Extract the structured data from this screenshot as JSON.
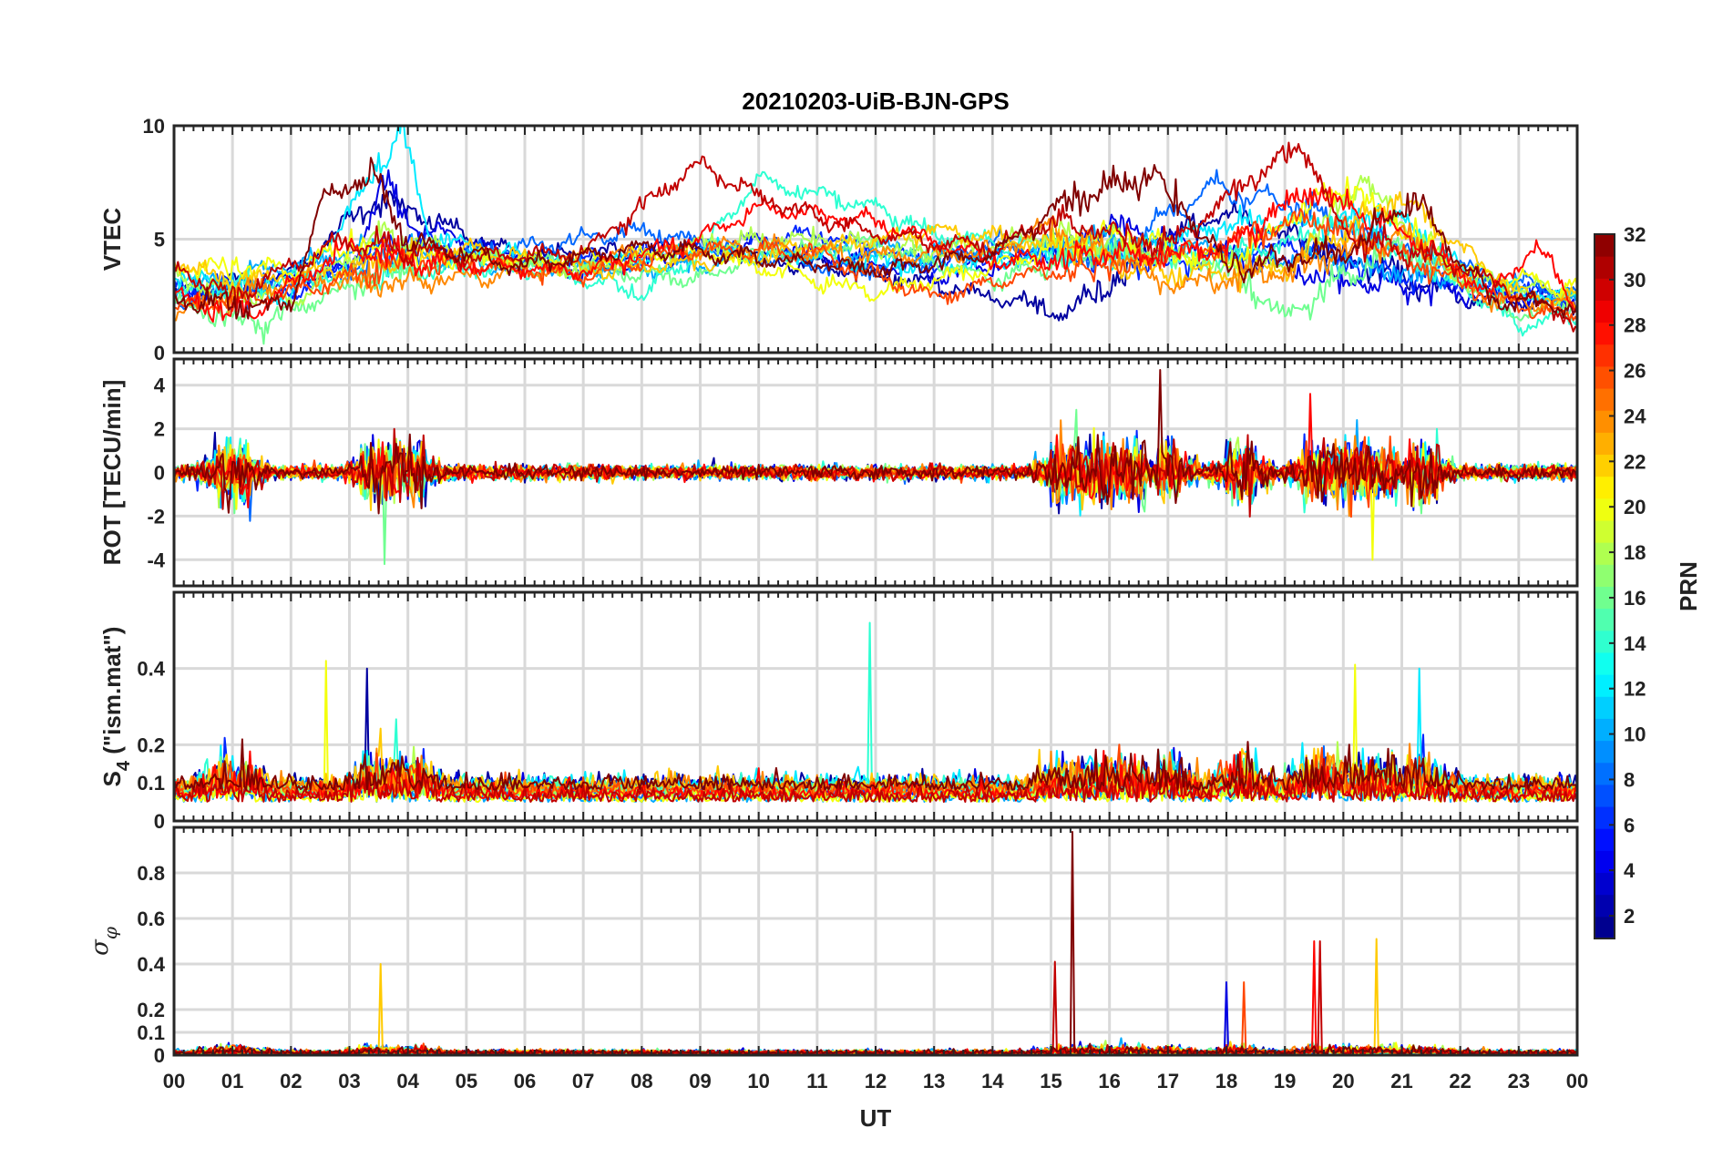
{
  "chart_data": {
    "type": "line",
    "title": "20210203-UiB-BJN-GPS",
    "xlabel": "UT",
    "x_tick_labels": [
      "00",
      "01",
      "02",
      "03",
      "04",
      "05",
      "06",
      "07",
      "08",
      "09",
      "10",
      "11",
      "12",
      "13",
      "14",
      "15",
      "16",
      "17",
      "18",
      "19",
      "20",
      "21",
      "22",
      "23",
      "00"
    ],
    "x_range_hours": [
      0,
      24
    ],
    "colorbar": {
      "label": "PRN",
      "range": [
        1,
        32
      ],
      "tick_labels": [
        "2",
        "4",
        "6",
        "8",
        "10",
        "12",
        "14",
        "16",
        "18",
        "20",
        "22",
        "24",
        "26",
        "28",
        "30",
        "32"
      ],
      "colormap": "jet"
    },
    "panels": [
      {
        "id": "vtec",
        "ylabel": "VTEC",
        "ylim": [
          0,
          10
        ],
        "yticks": [
          0,
          5,
          10
        ],
        "ytick_labels": [
          "0",
          "5",
          "10"
        ]
      },
      {
        "id": "rot",
        "ylabel": "ROT [TECU/min]",
        "ylim": [
          -5.2,
          5.2
        ],
        "yticks": [
          -4,
          -2,
          0,
          2,
          4
        ],
        "ytick_labels": [
          "-4",
          "-2",
          "0",
          "2",
          "4"
        ]
      },
      {
        "id": "s4",
        "ylabel_main": "S",
        "ylabel_sub": "4",
        "ylabel_rest": " (\"ism.mat\")",
        "ylim": [
          0,
          0.6
        ],
        "yticks": [
          0,
          0.1,
          0.2,
          0.4
        ],
        "ytick_labels": [
          "0",
          "0.1",
          "0.2",
          "0.4"
        ]
      },
      {
        "id": "sigma_phi",
        "ylabel_main": "σ",
        "ylabel_sub": "φ",
        "ylim": [
          0,
          1
        ],
        "yticks": [
          0,
          0.1,
          0.2,
          0.4,
          0.6,
          0.8
        ],
        "ytick_labels": [
          "0",
          "0.1",
          "0.2",
          "0.4",
          "0.6",
          "0.8"
        ]
      }
    ],
    "series": [
      {
        "prn": 2,
        "vtec_profile": [
          [
            0,
            2.6
          ],
          [
            2,
            3.4
          ],
          [
            3.4,
            6.8
          ],
          [
            4,
            6.2
          ],
          [
            6,
            4.2
          ],
          [
            9,
            4.6
          ],
          [
            12,
            3.5
          ],
          [
            14.5,
            2.2
          ],
          [
            15.2,
            1.6
          ],
          [
            17,
            5
          ],
          [
            18,
            6.2
          ],
          [
            20,
            4.2
          ],
          [
            22,
            2.4
          ],
          [
            24,
            2.2
          ]
        ]
      },
      {
        "prn": 4,
        "vtec_profile": [
          [
            0,
            2.4
          ],
          [
            3,
            3.6
          ],
          [
            3.6,
            7.4
          ],
          [
            4.2,
            5.4
          ],
          [
            7,
            3.6
          ],
          [
            10,
            4.8
          ],
          [
            13,
            3.4
          ],
          [
            15,
            4.2
          ],
          [
            16,
            5.6
          ],
          [
            18,
            4.4
          ],
          [
            20,
            3.2
          ],
          [
            22,
            2.6
          ],
          [
            24,
            2.4
          ]
        ]
      },
      {
        "prn": 6,
        "vtec_profile": [
          [
            0,
            3.0
          ],
          [
            2,
            2.6
          ],
          [
            4,
            5.0
          ],
          [
            6,
            3.8
          ],
          [
            8,
            4.4
          ],
          [
            11,
            5.2
          ],
          [
            13,
            4.0
          ],
          [
            15,
            4.6
          ],
          [
            17,
            3.8
          ],
          [
            19,
            4.8
          ],
          [
            21,
            3.4
          ],
          [
            24,
            2.6
          ]
        ]
      },
      {
        "prn": 8,
        "vtec_profile": [
          [
            0,
            2.2
          ],
          [
            2,
            3.0
          ],
          [
            3.8,
            4.2
          ],
          [
            6,
            4.6
          ],
          [
            8,
            5.4
          ],
          [
            10,
            4.2
          ],
          [
            12,
            3.6
          ],
          [
            14,
            4.8
          ],
          [
            16,
            4.2
          ],
          [
            17.8,
            7.4
          ],
          [
            19.2,
            6.4
          ],
          [
            21,
            4.6
          ],
          [
            24,
            2.4
          ]
        ]
      },
      {
        "prn": 10,
        "vtec_profile": [
          [
            0,
            2.8
          ],
          [
            3,
            4.4
          ],
          [
            5,
            4.0
          ],
          [
            8,
            3.6
          ],
          [
            10,
            4.2
          ],
          [
            12,
            4.6
          ],
          [
            14,
            4.2
          ],
          [
            16,
            5.0
          ],
          [
            18,
            4.4
          ],
          [
            20,
            4.0
          ],
          [
            22,
            3.2
          ],
          [
            24,
            2.2
          ]
        ]
      },
      {
        "prn": 12,
        "vtec_profile": [
          [
            0,
            3.4
          ],
          [
            2,
            2.4
          ],
          [
            3.9,
            9.8
          ],
          [
            4.4,
            5.0
          ],
          [
            7,
            3.8
          ],
          [
            9,
            4.6
          ],
          [
            11,
            4.2
          ],
          [
            13,
            3.8
          ],
          [
            16,
            4.4
          ],
          [
            18,
            5.6
          ],
          [
            21,
            5.8
          ],
          [
            22.5,
            2.8
          ],
          [
            24,
            2.4
          ]
        ]
      },
      {
        "prn": 14,
        "vtec_profile": [
          [
            0,
            2.6
          ],
          [
            2,
            3.2
          ],
          [
            4,
            3.6
          ],
          [
            6,
            3.8
          ],
          [
            8,
            2.6
          ],
          [
            9,
            4.4
          ],
          [
            10,
            7.6
          ],
          [
            12,
            6.4
          ],
          [
            13,
            5.2
          ],
          [
            15,
            4.6
          ],
          [
            18,
            4.2
          ],
          [
            20,
            5.6
          ],
          [
            22,
            3.0
          ],
          [
            23,
            1.2
          ],
          [
            24,
            1.6
          ]
        ]
      },
      {
        "prn": 16,
        "vtec_profile": [
          [
            0,
            2.2
          ],
          [
            1.5,
            1.2
          ],
          [
            3,
            3.0
          ],
          [
            5,
            4.2
          ],
          [
            7,
            3.8
          ],
          [
            9,
            3.2
          ],
          [
            10,
            4.4
          ],
          [
            12,
            4.8
          ],
          [
            14,
            3.2
          ],
          [
            16,
            4.6
          ],
          [
            18,
            3.8
          ],
          [
            19,
            1.6
          ],
          [
            21,
            4.8
          ],
          [
            23,
            1.6
          ],
          [
            24,
            2.2
          ]
        ]
      },
      {
        "prn": 18,
        "vtec_profile": [
          [
            0,
            3.2
          ],
          [
            2,
            2.2
          ],
          [
            3.5,
            5.2
          ],
          [
            5,
            4.4
          ],
          [
            7,
            3.6
          ],
          [
            9,
            4.8
          ],
          [
            11,
            5.0
          ],
          [
            13,
            4.4
          ],
          [
            15,
            5.2
          ],
          [
            17,
            4.4
          ],
          [
            19,
            3.6
          ],
          [
            20.3,
            7.6
          ],
          [
            22,
            3.2
          ],
          [
            24,
            2.6
          ]
        ]
      },
      {
        "prn": 20,
        "vtec_profile": [
          [
            0,
            3.8
          ],
          [
            2,
            3.6
          ],
          [
            3,
            4.8
          ],
          [
            5,
            4.0
          ],
          [
            7,
            4.2
          ],
          [
            9,
            4.4
          ],
          [
            11,
            3.2
          ],
          [
            12,
            2.6
          ],
          [
            14,
            3.8
          ],
          [
            16,
            5.2
          ],
          [
            18,
            4.0
          ],
          [
            20,
            7.4
          ],
          [
            22,
            3.6
          ],
          [
            24,
            2.8
          ]
        ]
      },
      {
        "prn": 22,
        "vtec_profile": [
          [
            0,
            4.2
          ],
          [
            1,
            3.0
          ],
          [
            3,
            3.8
          ],
          [
            5,
            4.6
          ],
          [
            7,
            3.6
          ],
          [
            9,
            4.0
          ],
          [
            11,
            4.6
          ],
          [
            13,
            5.4
          ],
          [
            15,
            4.8
          ],
          [
            17,
            3.4
          ],
          [
            19,
            3.8
          ],
          [
            21,
            6.8
          ],
          [
            23,
            2.6
          ],
          [
            24,
            2.4
          ]
        ]
      },
      {
        "prn": 24,
        "vtec_profile": [
          [
            0,
            1.8
          ],
          [
            2,
            3.2
          ],
          [
            4,
            3.0
          ],
          [
            6,
            3.6
          ],
          [
            8,
            4.4
          ],
          [
            10,
            4.6
          ],
          [
            12,
            4.2
          ],
          [
            14,
            4.4
          ],
          [
            15,
            5.6
          ],
          [
            17,
            3.0
          ],
          [
            19,
            3.6
          ],
          [
            21,
            5.2
          ],
          [
            22.5,
            2.4
          ],
          [
            24,
            2.0
          ]
        ]
      },
      {
        "prn": 26,
        "vtec_profile": [
          [
            0,
            2.0
          ],
          [
            2,
            2.6
          ],
          [
            3.5,
            3.8
          ],
          [
            5,
            4.0
          ],
          [
            7,
            3.4
          ],
          [
            9,
            4.6
          ],
          [
            11,
            4.4
          ],
          [
            13,
            2.4
          ],
          [
            14.5,
            3.4
          ],
          [
            16,
            3.8
          ],
          [
            18,
            4.8
          ],
          [
            19.5,
            6.0
          ],
          [
            21,
            4.2
          ],
          [
            23,
            2.0
          ],
          [
            24,
            1.6
          ]
        ]
      },
      {
        "prn": 28,
        "vtec_profile": [
          [
            0,
            2.4
          ],
          [
            1.2,
            1.6
          ],
          [
            3,
            4.6
          ],
          [
            5,
            3.8
          ],
          [
            7,
            3.6
          ],
          [
            9,
            5.0
          ],
          [
            10,
            6.4
          ],
          [
            12,
            5.8
          ],
          [
            14,
            4.0
          ],
          [
            16,
            4.2
          ],
          [
            18,
            4.6
          ],
          [
            19.4,
            7.2
          ],
          [
            21,
            5.4
          ],
          [
            22.5,
            2.6
          ],
          [
            23.3,
            4.8
          ],
          [
            24,
            2.0
          ]
        ]
      },
      {
        "prn": 30,
        "vtec_profile": [
          [
            0,
            3.6
          ],
          [
            1,
            2.6
          ],
          [
            3,
            5.0
          ],
          [
            5,
            4.2
          ],
          [
            7,
            4.4
          ],
          [
            9,
            8.4
          ],
          [
            10,
            6.8
          ],
          [
            12,
            5.2
          ],
          [
            14,
            4.6
          ],
          [
            15,
            5.8
          ],
          [
            17,
            4.8
          ],
          [
            19.3,
            9.2
          ],
          [
            20,
            5.2
          ],
          [
            22,
            3.8
          ],
          [
            24,
            1.4
          ]
        ]
      },
      {
        "prn": 32,
        "vtec_profile": [
          [
            0,
            2.4
          ],
          [
            2,
            2.0
          ],
          [
            2.5,
            6.6
          ],
          [
            3.4,
            8.0
          ],
          [
            4,
            4.8
          ],
          [
            6,
            3.8
          ],
          [
            8,
            4.6
          ],
          [
            10,
            4.2
          ],
          [
            12,
            3.6
          ],
          [
            14,
            4.4
          ],
          [
            15.2,
            6.6
          ],
          [
            16.8,
            7.8
          ],
          [
            18,
            3.8
          ],
          [
            20,
            4.4
          ],
          [
            21.2,
            6.8
          ],
          [
            22.5,
            2.4
          ],
          [
            24,
            2.0
          ]
        ]
      }
    ],
    "activity_windows_hours": [
      [
        0.7,
        1.3
      ],
      [
        3.2,
        4.3
      ],
      [
        15.0,
        16.6
      ],
      [
        16.8,
        17.2
      ],
      [
        18.0,
        18.5
      ],
      [
        19.3,
        20.9
      ],
      [
        21.1,
        21.6
      ]
    ],
    "notable_peaks": {
      "rot": [
        {
          "hour": 16.85,
          "value": 4.7,
          "prn": 32
        },
        {
          "hour": 3.6,
          "value": -4.2,
          "prn": 16
        },
        {
          "hour": 20.5,
          "value": -4.0,
          "prn": 20
        },
        {
          "hour": 19.45,
          "value": 3.6,
          "prn": 28
        }
      ],
      "s4": [
        {
          "hour": 11.9,
          "value": 0.52,
          "prn": 14
        },
        {
          "hour": 3.3,
          "value": 0.4,
          "prn": 2
        },
        {
          "hour": 2.6,
          "value": 0.42,
          "prn": 20
        },
        {
          "hour": 20.2,
          "value": 0.41,
          "prn": 20
        },
        {
          "hour": 21.3,
          "value": 0.4,
          "prn": 12
        }
      ],
      "sigma_phi": [
        {
          "hour": 15.35,
          "value": 0.98,
          "prn": 32
        },
        {
          "hour": 15.05,
          "value": 0.41,
          "prn": 30
        },
        {
          "hour": 3.55,
          "value": 0.4,
          "prn": 22
        },
        {
          "hour": 19.5,
          "value": 0.5,
          "prn": 28
        },
        {
          "hour": 19.6,
          "value": 0.5,
          "prn": 30
        },
        {
          "hour": 20.55,
          "value": 0.51,
          "prn": 22
        },
        {
          "hour": 18.0,
          "value": 0.32,
          "prn": 4
        },
        {
          "hour": 18.3,
          "value": 0.32,
          "prn": 26
        }
      ]
    }
  }
}
